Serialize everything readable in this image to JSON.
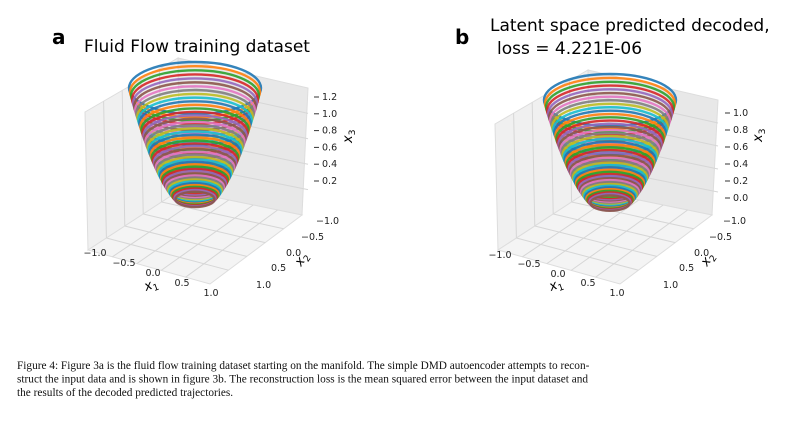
{
  "panels": [
    {
      "letter": "a",
      "title": [
        "Fluid Flow training dataset"
      ],
      "x1_ticks": [
        "−1.0",
        "−0.5",
        "0.0",
        "0.5",
        "1.0"
      ],
      "x2_ticks": [
        "−1.0",
        "−0.5",
        "0.0",
        "0.5",
        "1.0"
      ],
      "x3_ticks": [
        "0.2",
        "0.4",
        "0.6",
        "0.8",
        "1.0",
        "1.2"
      ],
      "axis_labels": [
        {
          "base": "x",
          "sub": "1"
        },
        {
          "base": "x",
          "sub": "2"
        },
        {
          "base": "x",
          "sub": "3"
        }
      ]
    },
    {
      "letter": "b",
      "title": [
        "Latent space predicted decoded,",
        "loss = 4.221E-06"
      ],
      "x1_ticks": [
        "−1.0",
        "−0.5",
        "0.0",
        "0.5",
        "1.0"
      ],
      "x2_ticks": [
        "−1.0",
        "−0.5",
        "0.0",
        "0.5",
        "1.0"
      ],
      "x3_ticks": [
        "0.0",
        "0.2",
        "0.4",
        "0.6",
        "0.8",
        "1.0"
      ],
      "axis_labels": [
        {
          "base": "x",
          "sub": "1"
        },
        {
          "base": "x",
          "sub": "2"
        },
        {
          "base": "x",
          "sub": "3"
        }
      ]
    }
  ],
  "caption": [
    "Figure 4: Figure 3a is the fluid flow training dataset starting on the manifold. The simple DMD autoencoder attempts to recon-",
    "struct the input data and is shown in figure 3b. The reconstruction loss is the mean squared error between the input dataset and",
    "the results of the decoded predicted trajectories."
  ]
}
